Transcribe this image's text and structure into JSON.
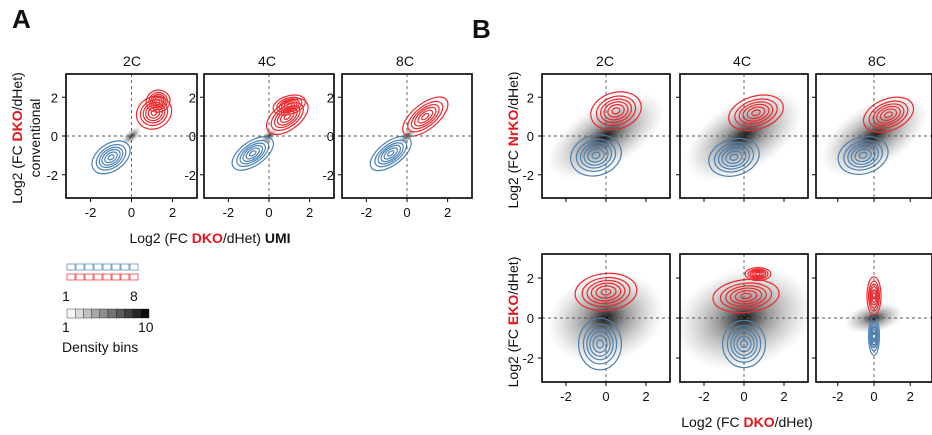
{
  "panel_a": {
    "letter": "A",
    "ylabel_pre": "Log2 (FC ",
    "ylabel_hl": "DKO",
    "ylabel_post": "/dHet)",
    "ylabel2": "conventional",
    "xlabel_pre": "Log2 (FC ",
    "xlabel_hl": "DKO",
    "xlabel_mid": "/dHet) ",
    "xlabel_bold": "UMI"
  },
  "panel_b": {
    "letter": "B",
    "row1_ylabel_pre": "Log2 (FC ",
    "row1_ylabel_hl": "NrKO",
    "row1_ylabel_post": "/dHet)",
    "row2_ylabel_pre": "Log2 (FC ",
    "row2_ylabel_hl": "EKO",
    "row2_ylabel_post": "/dHet)",
    "xlabel_pre": "Log2 (FC ",
    "xlabel_hl": "DKO",
    "xlabel_post": "/dHet)"
  },
  "stage_labels": [
    "2C",
    "4C",
    "8C"
  ],
  "legend": {
    "contour_min": "1",
    "contour_max": "8",
    "density_min": "1",
    "density_max": "10",
    "density_title": "Density bins"
  },
  "colors": {
    "up": "#f0282d",
    "down": "#4a82b4",
    "highlight": "#e8141c",
    "density": "#000000"
  },
  "chart_data": [
    {
      "type": "scatter",
      "title": "2C",
      "xlabel": "Log2 (FC DKO/dHet) UMI",
      "ylabel": "Log2 (FC DKO/dHet) conventional",
      "xlim": [
        -3.2,
        3.2
      ],
      "ylim": [
        -3.2,
        3.2
      ],
      "x_ticks": [
        -2,
        0,
        2
      ],
      "y_ticks": [
        -2,
        0,
        2
      ],
      "density": [
        {
          "x": 0,
          "y": 0,
          "sx": 0.2,
          "sy": 0.2,
          "rho": 0.9
        }
      ],
      "series": [
        {
          "color": "up",
          "centers": [
            {
              "x": 1.1,
              "y": 1.2,
              "sx": 0.35,
              "sy": 0.5,
              "rho": 0.6
            },
            {
              "x": 1.3,
              "y": 1.8,
              "sx": 0.25,
              "sy": 0.3,
              "rho": 0.3
            }
          ]
        },
        {
          "color": "down",
          "centers": [
            {
              "x": -1.0,
              "y": -1.1,
              "sx": 0.4,
              "sy": 0.45,
              "rho": 0.7
            }
          ]
        }
      ]
    },
    {
      "type": "scatter",
      "title": "4C",
      "xlim": [
        -3.2,
        3.2
      ],
      "ylim": [
        -3.2,
        3.2
      ],
      "x_ticks": [
        -2,
        0,
        2
      ],
      "y_ticks": [
        -2,
        0,
        2
      ],
      "density": [
        {
          "x": 0,
          "y": 0,
          "sx": 0.18,
          "sy": 0.18,
          "rho": 0.9
        }
      ],
      "series": [
        {
          "color": "up",
          "centers": [
            {
              "x": 0.9,
              "y": 1.0,
              "sx": 0.45,
              "sy": 0.45,
              "rho": 0.75
            },
            {
              "x": 1.0,
              "y": 1.6,
              "sx": 0.35,
              "sy": 0.25,
              "rho": 0.3
            }
          ]
        },
        {
          "color": "down",
          "centers": [
            {
              "x": -0.8,
              "y": -0.9,
              "sx": 0.45,
              "sy": 0.4,
              "rho": 0.7
            }
          ]
        }
      ]
    },
    {
      "type": "scatter",
      "title": "8C",
      "xlim": [
        -3.2,
        3.2
      ],
      "ylim": [
        -3.2,
        3.2
      ],
      "x_ticks": [
        -2,
        0,
        2
      ],
      "y_ticks": [
        -2,
        0,
        2
      ],
      "density": [
        {
          "x": 0,
          "y": 0,
          "sx": 0.18,
          "sy": 0.18,
          "rho": 0.9
        }
      ],
      "series": [
        {
          "color": "up",
          "centers": [
            {
              "x": 0.9,
              "y": 1.0,
              "sx": 0.5,
              "sy": 0.45,
              "rho": 0.8
            }
          ]
        },
        {
          "color": "down",
          "centers": [
            {
              "x": -0.8,
              "y": -0.9,
              "sx": 0.45,
              "sy": 0.4,
              "rho": 0.75
            }
          ]
        }
      ]
    },
    {
      "type": "scatter",
      "title": "2C",
      "xlabel": "Log2 (FC DKO/dHet)",
      "ylabel": "Log2 (FC NrKO/dHet)",
      "xlim": [
        -3.2,
        3.2
      ],
      "ylim": [
        -3.2,
        3.2
      ],
      "y_ticks": [
        -2,
        0,
        2
      ],
      "density": [
        {
          "x": 0,
          "y": 0,
          "sx": 1.1,
          "sy": 0.8,
          "rho": 0.6
        }
      ],
      "series": [
        {
          "color": "up",
          "centers": [
            {
              "x": 0.5,
              "y": 1.3,
              "sx": 0.55,
              "sy": 0.5,
              "rho": 0.3
            }
          ]
        },
        {
          "color": "down",
          "centers": [
            {
              "x": -0.5,
              "y": -1.0,
              "sx": 0.55,
              "sy": 0.55,
              "rho": 0.3
            }
          ]
        }
      ]
    },
    {
      "type": "scatter",
      "title": "4C",
      "xlim": [
        -3.2,
        3.2
      ],
      "ylim": [
        -3.2,
        3.2
      ],
      "density": [
        {
          "x": 0,
          "y": 0,
          "sx": 1.1,
          "sy": 0.9,
          "rho": 0.6
        }
      ],
      "series": [
        {
          "color": "up",
          "centers": [
            {
              "x": 0.6,
              "y": 1.2,
              "sx": 0.6,
              "sy": 0.45,
              "rho": 0.3
            }
          ]
        },
        {
          "color": "down",
          "centers": [
            {
              "x": -0.5,
              "y": -1.1,
              "sx": 0.55,
              "sy": 0.5,
              "rho": 0.3
            }
          ]
        }
      ]
    },
    {
      "type": "scatter",
      "title": "8C",
      "xlim": [
        -3.2,
        3.2
      ],
      "ylim": [
        -3.2,
        3.2
      ],
      "density": [
        {
          "x": 0,
          "y": 0,
          "sx": 1.1,
          "sy": 0.8,
          "rho": 0.6
        }
      ],
      "series": [
        {
          "color": "up",
          "centers": [
            {
              "x": 0.8,
              "y": 1.1,
              "sx": 0.6,
              "sy": 0.45,
              "rho": 0.4
            }
          ]
        },
        {
          "color": "down",
          "centers": [
            {
              "x": -0.6,
              "y": -1.0,
              "sx": 0.6,
              "sy": 0.5,
              "rho": 0.3
            }
          ]
        }
      ]
    },
    {
      "type": "scatter",
      "xlabel": "Log2 (FC DKO/dHet)",
      "ylabel": "Log2 (FC EKO/dHet)",
      "xlim": [
        -3.2,
        3.2
      ],
      "ylim": [
        -3.2,
        3.2
      ],
      "x_ticks": [
        -2,
        0,
        2
      ],
      "y_ticks": [
        -2,
        0,
        2
      ],
      "density": [
        {
          "x": 0,
          "y": 0,
          "sx": 1.0,
          "sy": 0.9,
          "rho": 0.3
        }
      ],
      "series": [
        {
          "color": "up",
          "centers": [
            {
              "x": 0.0,
              "y": 1.3,
              "sx": 0.7,
              "sy": 0.45,
              "rho": 0.1
            }
          ]
        },
        {
          "color": "down",
          "centers": [
            {
              "x": -0.3,
              "y": -1.3,
              "sx": 0.5,
              "sy": 0.6,
              "rho": 0.0
            }
          ]
        }
      ]
    },
    {
      "type": "scatter",
      "xlim": [
        -3.2,
        3.2
      ],
      "ylim": [
        -3.2,
        3.2
      ],
      "x_ticks": [
        -2,
        0,
        2
      ],
      "density": [
        {
          "x": 0,
          "y": 0,
          "sx": 1.2,
          "sy": 1.0,
          "rho": 0.3
        }
      ],
      "series": [
        {
          "color": "up",
          "centers": [
            {
              "x": 0.1,
              "y": 1.1,
              "sx": 0.75,
              "sy": 0.4,
              "rho": 0.1
            },
            {
              "x": 0.7,
              "y": 2.2,
              "sx": 0.3,
              "sy": 0.15,
              "rho": 0.0
            }
          ]
        },
        {
          "color": "down",
          "centers": [
            {
              "x": 0.0,
              "y": -1.3,
              "sx": 0.5,
              "sy": 0.55,
              "rho": 0.0
            }
          ]
        }
      ]
    },
    {
      "type": "scatter",
      "xlim": [
        -3.2,
        3.2
      ],
      "ylim": [
        -3.2,
        3.2
      ],
      "x_ticks": [
        -2,
        0,
        2
      ],
      "density": [
        {
          "x": 0,
          "y": 0,
          "sx": 0.3,
          "sy": 0.5,
          "rho": 0.2
        }
      ],
      "series": [
        {
          "color": "up",
          "centers": [
            {
              "x": 0.0,
              "y": 1.1,
              "sx": 0.18,
              "sy": 0.45,
              "rho": 0.0
            }
          ]
        },
        {
          "color": "down",
          "centers": [
            {
              "x": 0.0,
              "y": -0.9,
              "sx": 0.14,
              "sy": 0.45,
              "rho": 0.0
            }
          ]
        }
      ]
    }
  ]
}
